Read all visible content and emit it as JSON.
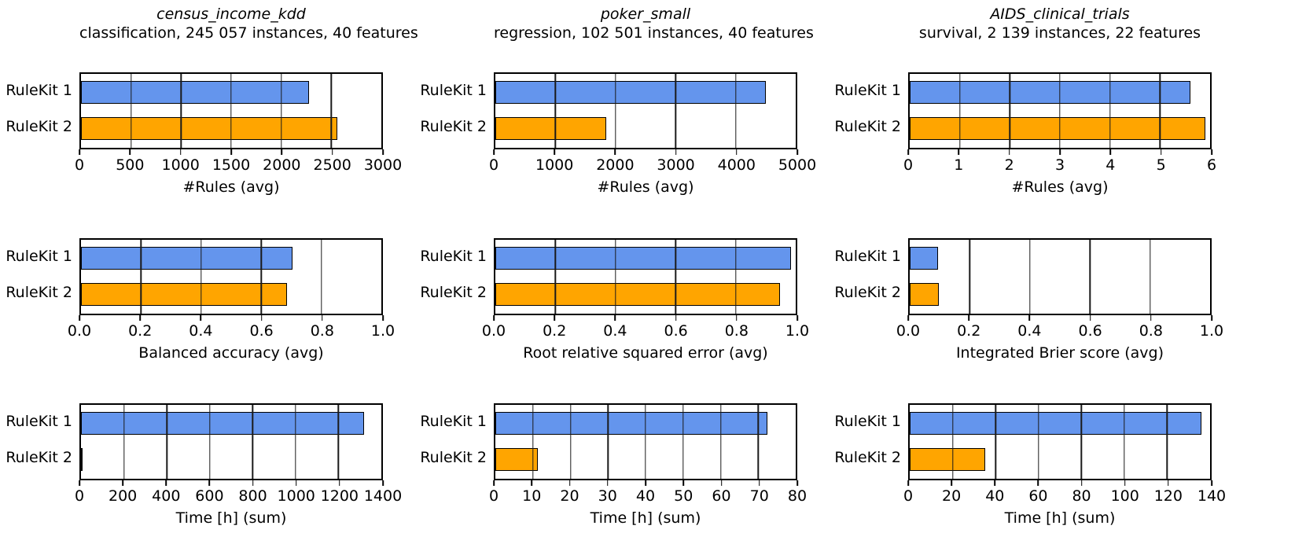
{
  "figure": {
    "background": "#ffffff",
    "text_color": "#000000"
  },
  "colors": {
    "rulekit1_bar": "#6495ed",
    "rulekit2_bar": "#ffa500",
    "bar_edge": "#000000",
    "grid_line": "#1a1a1a",
    "axis_line": "#000000"
  },
  "chart_data": [
    {
      "type": "bar",
      "orientation": "horizontal",
      "title": "census_income_kdd",
      "subtitle": "classification, 245 057 instances, 40 features",
      "xlabel": "#Rules (avg)",
      "categories": [
        "RuleKit 1",
        "RuleKit 2"
      ],
      "values": [
        2280,
        2560
      ],
      "bar_colors": [
        "#6495ed",
        "#ffa500"
      ],
      "xlim": [
        0,
        3000
      ],
      "xtick_values": [
        0,
        500,
        1000,
        1500,
        2000,
        2500,
        3000
      ],
      "xtick_labels": [
        "0",
        "500",
        "1000",
        "1500",
        "2000",
        "2500",
        "3000"
      ],
      "grid": true,
      "legend": false
    },
    {
      "type": "bar",
      "orientation": "horizontal",
      "title": "poker_small",
      "subtitle": "regression, 102 501 instances, 40 features",
      "xlabel": "#Rules (avg)",
      "categories": [
        "RuleKit 1",
        "RuleKit 2"
      ],
      "values": [
        4500,
        1850
      ],
      "bar_colors": [
        "#6495ed",
        "#ffa500"
      ],
      "xlim": [
        0,
        5000
      ],
      "xtick_values": [
        0,
        1000,
        2000,
        3000,
        4000,
        5000
      ],
      "xtick_labels": [
        "0",
        "1000",
        "2000",
        "3000",
        "4000",
        "5000"
      ],
      "grid": true,
      "legend": false
    },
    {
      "type": "bar",
      "orientation": "horizontal",
      "title": "AIDS_clinical_trials",
      "subtitle": "survival, 2 139 instances, 22 features",
      "xlabel": "#Rules (avg)",
      "categories": [
        "RuleKit 1",
        "RuleKit 2"
      ],
      "values": [
        5.6,
        5.9
      ],
      "bar_colors": [
        "#6495ed",
        "#ffa500"
      ],
      "xlim": [
        0,
        6
      ],
      "xtick_values": [
        0,
        1,
        2,
        3,
        4,
        5,
        6
      ],
      "xtick_labels": [
        "0",
        "1",
        "2",
        "3",
        "4",
        "5",
        "6"
      ],
      "grid": true,
      "legend": false
    },
    {
      "type": "bar",
      "orientation": "horizontal",
      "title": "",
      "subtitle": "",
      "xlabel": "Balanced accuracy (avg)",
      "categories": [
        "RuleKit 1",
        "RuleKit 2"
      ],
      "values": [
        0.703,
        0.686
      ],
      "bar_colors": [
        "#6495ed",
        "#ffa500"
      ],
      "xlim": [
        0,
        1.0
      ],
      "xtick_values": [
        0,
        0.2,
        0.4,
        0.6,
        0.8,
        1.0
      ],
      "xtick_labels": [
        "0.0",
        "0.2",
        "0.4",
        "0.6",
        "0.8",
        "1.0"
      ],
      "grid": true,
      "legend": false
    },
    {
      "type": "bar",
      "orientation": "horizontal",
      "title": "",
      "subtitle": "",
      "xlabel": "Root relative squared error (avg)",
      "categories": [
        "RuleKit 1",
        "RuleKit 2"
      ],
      "values": [
        0.985,
        0.948
      ],
      "bar_colors": [
        "#6495ed",
        "#ffa500"
      ],
      "xlim": [
        0,
        1.0
      ],
      "xtick_values": [
        0,
        0.2,
        0.4,
        0.6,
        0.8,
        1.0
      ],
      "xtick_labels": [
        "0.0",
        "0.2",
        "0.4",
        "0.6",
        "0.8",
        "1.0"
      ],
      "grid": true,
      "legend": false
    },
    {
      "type": "bar",
      "orientation": "horizontal",
      "title": "",
      "subtitle": "",
      "xlabel": "Integrated Brier score (avg)",
      "categories": [
        "RuleKit 1",
        "RuleKit 2"
      ],
      "values": [
        0.094,
        0.098
      ],
      "bar_colors": [
        "#6495ed",
        "#ffa500"
      ],
      "xlim": [
        0,
        1.0
      ],
      "xtick_values": [
        0,
        0.2,
        0.4,
        0.6,
        0.8,
        1.0
      ],
      "xtick_labels": [
        "0.0",
        "0.2",
        "0.4",
        "0.6",
        "0.8",
        "1.0"
      ],
      "grid": true,
      "legend": false
    },
    {
      "type": "bar",
      "orientation": "horizontal",
      "title": "",
      "subtitle": "",
      "xlabel": "Time [h] (sum)",
      "categories": [
        "RuleKit 1",
        "RuleKit 2"
      ],
      "values": [
        1320,
        2
      ],
      "bar_colors": [
        "#6495ed",
        "#ffa500"
      ],
      "xlim": [
        0,
        1400
      ],
      "xtick_values": [
        0,
        200,
        400,
        600,
        800,
        1000,
        1200,
        1400
      ],
      "xtick_labels": [
        "0",
        "200",
        "400",
        "600",
        "800",
        "1000",
        "1200",
        "1400"
      ],
      "grid": true,
      "legend": false
    },
    {
      "type": "bar",
      "orientation": "horizontal",
      "title": "",
      "subtitle": "",
      "xlabel": "Time [h] (sum)",
      "categories": [
        "RuleKit 1",
        "RuleKit 2"
      ],
      "values": [
        72.5,
        11.3
      ],
      "bar_colors": [
        "#6495ed",
        "#ffa500"
      ],
      "xlim": [
        0,
        80
      ],
      "xtick_values": [
        0,
        10,
        20,
        30,
        40,
        50,
        60,
        70,
        80
      ],
      "xtick_labels": [
        "0",
        "10",
        "20",
        "30",
        "40",
        "50",
        "60",
        "70",
        "80"
      ],
      "grid": true,
      "legend": false
    },
    {
      "type": "bar",
      "orientation": "horizontal",
      "title": "",
      "subtitle": "",
      "xlabel": "Time [h] (sum)",
      "categories": [
        "RuleKit 1",
        "RuleKit 2"
      ],
      "values": [
        136,
        35
      ],
      "bar_colors": [
        "#6495ed",
        "#ffa500"
      ],
      "xlim": [
        0,
        140
      ],
      "xtick_values": [
        0,
        20,
        40,
        60,
        80,
        100,
        120,
        140
      ],
      "xtick_labels": [
        "0",
        "20",
        "40",
        "60",
        "80",
        "100",
        "120",
        "140"
      ],
      "grid": true,
      "legend": false
    }
  ]
}
